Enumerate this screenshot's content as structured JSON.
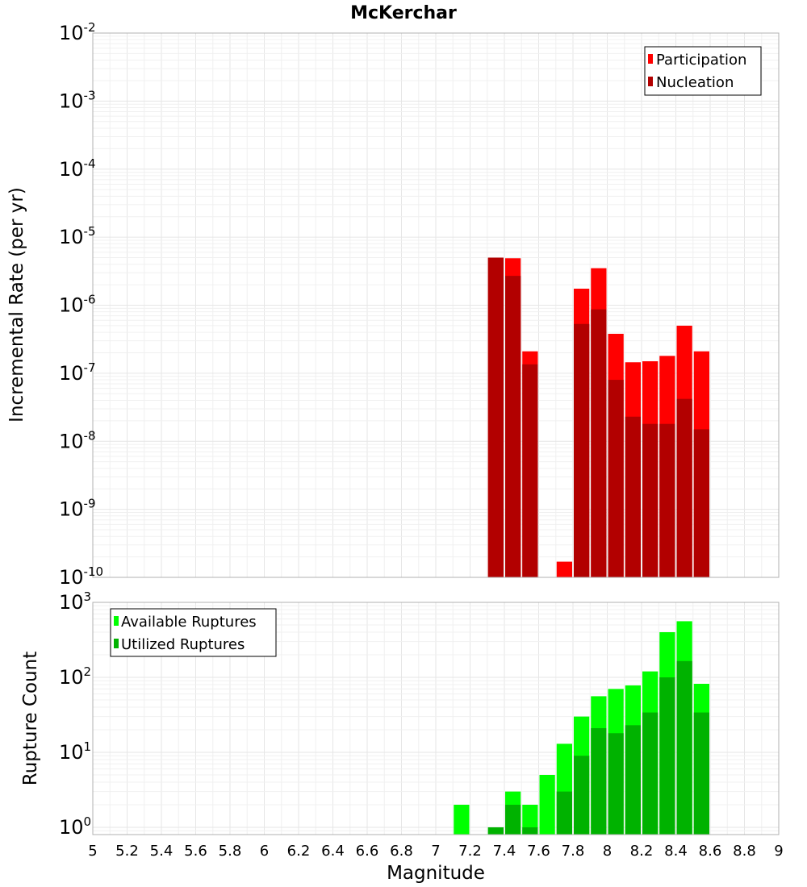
{
  "title": "McKerchar",
  "colors": {
    "participation": "#ff0000",
    "nucleation": "#b20000",
    "available": "#00ff00",
    "utilized": "#00b200"
  },
  "chart_data": [
    {
      "type": "bar",
      "title": "McKerchar",
      "xlabel": "Magnitude",
      "ylabel": "Incremental Rate (per yr)",
      "yscale": "log",
      "ylim": [
        1e-10,
        0.01
      ],
      "xlim": [
        5,
        9
      ],
      "legend_position": "top-right",
      "series": [
        {
          "name": "Participation",
          "x": [
            7.3,
            7.4,
            7.5,
            7.7,
            7.8,
            7.9,
            8.0,
            8.1,
            8.2,
            8.3,
            8.4,
            8.5
          ],
          "values": [
            5e-06,
            4.9e-06,
            2.1e-07,
            1.7e-10,
            1.75e-06,
            3.5e-06,
            3.8e-07,
            1.45e-07,
            1.5e-07,
            1.8e-07,
            5e-07,
            2.1e-07
          ]
        },
        {
          "name": "Nucleation",
          "x": [
            7.3,
            7.4,
            7.5,
            7.8,
            7.9,
            8.0,
            8.1,
            8.2,
            8.3,
            8.4,
            8.5
          ],
          "values": [
            5e-06,
            2.7e-06,
            1.35e-07,
            5.3e-07,
            8.7e-07,
            8e-08,
            2.3e-08,
            1.8e-08,
            1.8e-08,
            4.2e-08,
            1.5e-08
          ]
        }
      ]
    },
    {
      "type": "bar",
      "xlabel": "Magnitude",
      "ylabel": "Rupture Count",
      "yscale": "log",
      "ylim": [
        0.8,
        1000
      ],
      "xlim": [
        5,
        9
      ],
      "xticks": [
        "5",
        "5.2",
        "5.4",
        "5.6",
        "5.8",
        "6",
        "6.2",
        "6.4",
        "6.6",
        "6.8",
        "7",
        "7.2",
        "7.4",
        "7.6",
        "7.8",
        "8",
        "8.2",
        "8.4",
        "8.6",
        "8.8",
        "9"
      ],
      "legend_position": "top-left",
      "series": [
        {
          "name": "Available Ruptures",
          "x": [
            7.1,
            7.3,
            7.4,
            7.5,
            7.6,
            7.7,
            7.8,
            7.9,
            8.0,
            8.1,
            8.2,
            8.3,
            8.4,
            8.5
          ],
          "values": [
            2,
            1,
            3,
            2,
            5,
            13,
            30,
            56,
            70,
            78,
            120,
            400,
            560,
            82
          ]
        },
        {
          "name": "Utilized Ruptures",
          "x": [
            7.3,
            7.4,
            7.5,
            7.7,
            7.8,
            7.9,
            8.0,
            8.1,
            8.2,
            8.3,
            8.4,
            8.5
          ],
          "values": [
            1,
            2,
            1,
            3,
            9,
            21,
            18,
            23,
            34,
            100,
            165,
            34
          ]
        }
      ]
    }
  ]
}
